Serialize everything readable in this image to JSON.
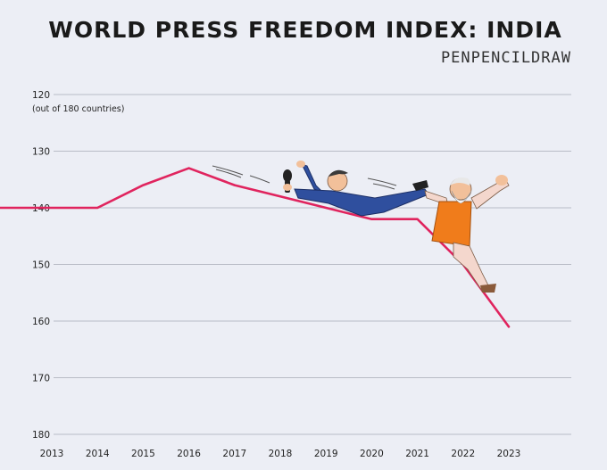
{
  "chart_data": {
    "type": "line",
    "title": "WORLD PRESS FREEDOM INDEX: INDIA",
    "credit": "PENPENCILDRAW",
    "ylabel": "(out of 180 countries)",
    "xlabel": "",
    "ylim": [
      120,
      180
    ],
    "y_inverted": true,
    "y_ticks": [
      120,
      130,
      140,
      150,
      160,
      170,
      180
    ],
    "x": [
      "2013",
      "2014",
      "2015",
      "2016",
      "2017",
      "2018",
      "2019",
      "2020",
      "2021",
      "2022",
      "2023"
    ],
    "values": [
      140,
      140,
      136,
      133,
      136,
      138,
      140,
      142,
      142,
      150,
      161
    ],
    "grid": true,
    "line_color": "#e0245e"
  }
}
